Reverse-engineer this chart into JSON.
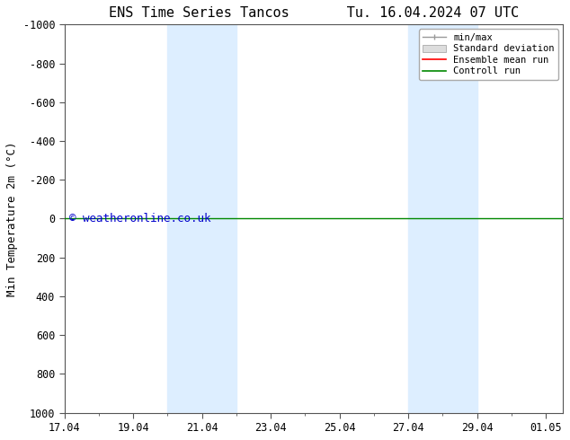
{
  "title": "ENS Time Series Tancos",
  "title2": "Tu. 16.04.2024 07 UTC",
  "ylabel": "Min Temperature 2m (°C)",
  "ylim_bottom": 1000,
  "ylim_top": -1000,
  "yticks": [
    -1000,
    -800,
    -600,
    -400,
    -200,
    0,
    200,
    400,
    600,
    800,
    1000
  ],
  "xtick_labels": [
    "17.04",
    "19.04",
    "21.04",
    "23.04",
    "25.04",
    "27.04",
    "29.04",
    "01.05"
  ],
  "xtick_positions": [
    0,
    2,
    4,
    6,
    8,
    10,
    12,
    14
  ],
  "xlim": [
    0,
    14.5
  ],
  "shaded_bands": [
    {
      "x_start": 3.0,
      "x_end": 5.0
    },
    {
      "x_start": 10.0,
      "x_end": 12.0
    }
  ],
  "band_color": "#ddeeff",
  "band_alpha": 1.0,
  "hline_y": 0,
  "hline_color": "#008800",
  "hline_linewidth": 1.0,
  "copyright_text": "© weatheronline.co.uk",
  "copyright_color": "#0000cc",
  "copyright_fontsize": 9,
  "legend_items": [
    {
      "label": "min/max",
      "color": "#888888"
    },
    {
      "label": "Standard deviation",
      "color": "#cccccc"
    },
    {
      "label": "Ensemble mean run",
      "color": "#ff0000"
    },
    {
      "label": "Controll run",
      "color": "#008800"
    }
  ],
  "background_color": "#ffffff",
  "tick_label_fontsize": 8.5,
  "axis_label_fontsize": 9,
  "title_fontsize": 11
}
